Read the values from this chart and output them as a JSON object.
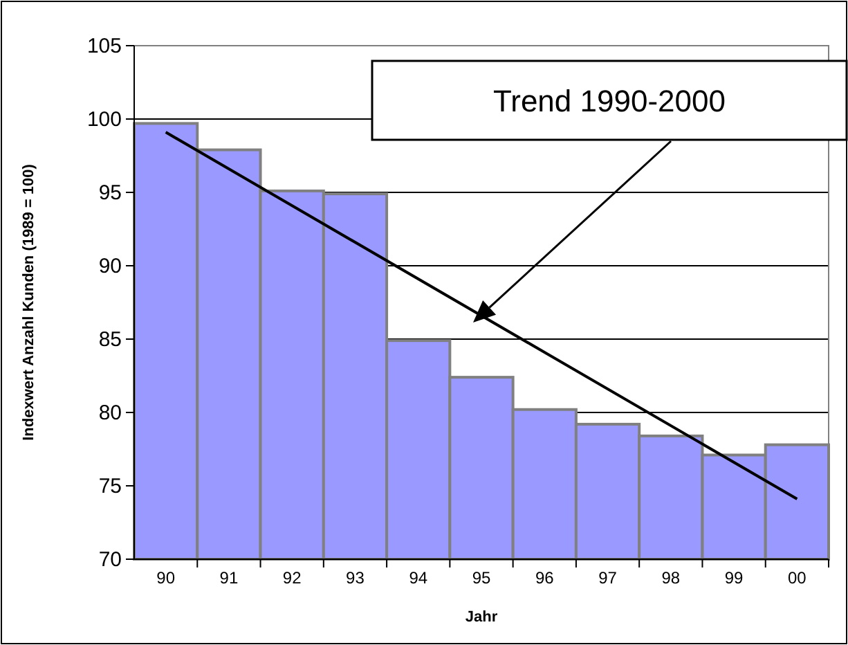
{
  "chart_data": {
    "type": "bar",
    "xlabel": "Jahr",
    "ylabel": "Indexwert Anzahl Kunden (1989 = 100)",
    "categories": [
      "90",
      "91",
      "92",
      "93",
      "94",
      "95",
      "96",
      "97",
      "98",
      "99",
      "00"
    ],
    "series": [
      {
        "color": "#9999ff",
        "values": [
          99.7,
          97.9,
          95.1,
          94.9,
          84.9,
          82.4,
          80.2,
          79.2,
          78.4,
          77.1,
          77.8
        ]
      },
      {
        "type": "line",
        "color": "#000000",
        "x": [
          "90",
          "00"
        ],
        "values": [
          99.1,
          74.1
        ]
      }
    ],
    "ylim": [
      70,
      105
    ],
    "yticks": [
      70,
      75,
      80,
      85,
      90,
      95,
      100,
      105
    ],
    "grid": "y",
    "annotations": [
      "Trend 1990-2000"
    ]
  }
}
